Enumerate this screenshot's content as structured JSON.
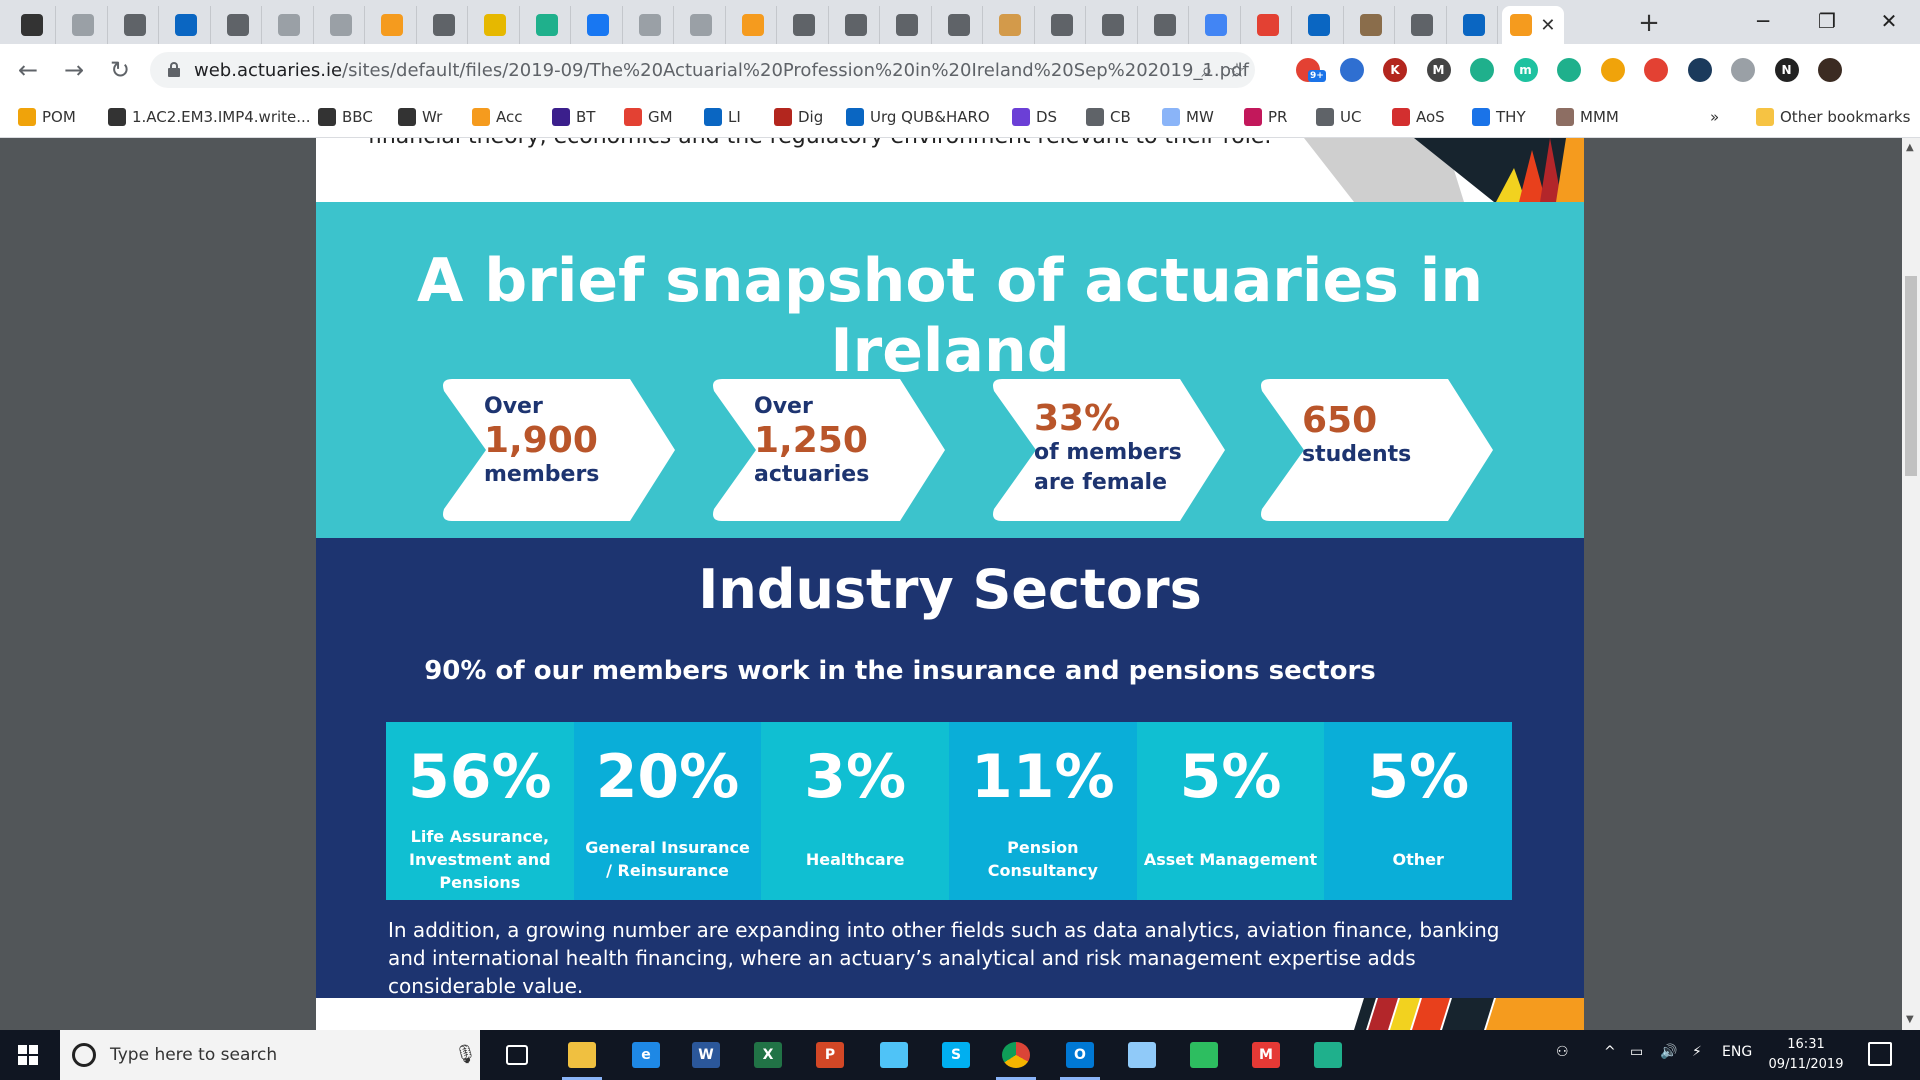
{
  "tabs": [
    {
      "icon": "page-icon",
      "color": "#333333"
    },
    {
      "icon": "doc-icon",
      "color": "#9aa0a6"
    },
    {
      "icon": "globe-icon",
      "color": "#5f6368"
    },
    {
      "icon": "linkedin-icon",
      "color": "#0a66c2"
    },
    {
      "icon": "doc-icon",
      "color": "#5f6368"
    },
    {
      "icon": "doc-icon",
      "color": "#9aa0a6"
    },
    {
      "icon": "doc-icon",
      "color": "#9aa0a6"
    },
    {
      "icon": "chart-icon",
      "color": "#f59b1e"
    },
    {
      "icon": "y-icon",
      "color": "#5f6368"
    },
    {
      "icon": "coin-icon",
      "color": "#e6b800"
    },
    {
      "icon": "s-icon",
      "color": "#1fb08c"
    },
    {
      "icon": "facebook-icon",
      "color": "#1877f2"
    },
    {
      "icon": "doc-icon",
      "color": "#9aa0a6"
    },
    {
      "icon": "doc-icon",
      "color": "#9aa0a6"
    },
    {
      "icon": "chart-icon",
      "color": "#f59b1e"
    },
    {
      "icon": "globe-icon",
      "color": "#5f6368"
    },
    {
      "icon": "globe-icon",
      "color": "#5f6368"
    },
    {
      "icon": "globe-icon",
      "color": "#5f6368"
    },
    {
      "icon": "globe-icon",
      "color": "#5f6368"
    },
    {
      "icon": "crest-icon",
      "color": "#d39a4a"
    },
    {
      "icon": "globe-icon",
      "color": "#5f6368"
    },
    {
      "icon": "globe-icon",
      "color": "#5f6368"
    },
    {
      "icon": "globe-icon",
      "color": "#5f6368"
    },
    {
      "icon": "google-icon",
      "color": "#4285f4"
    },
    {
      "icon": "pdf-icon",
      "color": "#e34133"
    },
    {
      "icon": "linkedin-icon",
      "color": "#0a66c2"
    },
    {
      "icon": "avatar-icon",
      "color": "#8a6d4b"
    },
    {
      "icon": "globe-icon",
      "color": "#5f6368"
    },
    {
      "icon": "linkedin-icon",
      "color": "#0a66c2"
    }
  ],
  "active_tab": {
    "icon": "actuaries-icon",
    "color": "#f59b1e"
  },
  "address_bar": {
    "url_host": "web.actuaries.ie",
    "url_path": "/sites/default/files/2019-09/The%20Actuarial%20Profession%20in%20Ireland%20Sep%202019_1.pdf"
  },
  "extensions": [
    {
      "icon": "notification-icon",
      "color": "#e34133",
      "badge": "9+"
    },
    {
      "icon": "extension-blue-icon",
      "color": "#2f6fd1"
    },
    {
      "icon": "k-icon",
      "color": "#b3261e",
      "label": "K"
    },
    {
      "icon": "m-icon",
      "color": "#444444",
      "label": "M"
    },
    {
      "icon": "check-icon",
      "color": "#1fb08c"
    },
    {
      "icon": "m-circle-icon",
      "color": "#1ec2a0",
      "label": "m"
    },
    {
      "icon": "s-icon",
      "color": "#1fb08c"
    },
    {
      "icon": "mail-icon",
      "color": "#f0a30a"
    },
    {
      "icon": "dots-icon",
      "color": "#e34133"
    },
    {
      "icon": "chat-icon",
      "color": "#1b3a5c"
    },
    {
      "icon": "p-icon",
      "color": "#9aa0a6"
    },
    {
      "icon": "notion-icon",
      "color": "#222222",
      "label": "N"
    },
    {
      "icon": "profile-avatar-icon",
      "color": "#3b2b22"
    }
  ],
  "bookmarks": [
    {
      "label": "POM",
      "icon": "circle-icon",
      "color": "#f0a30a"
    },
    {
      "label": "1.AC2.EM3.IMP4.write...",
      "icon": "page-icon",
      "color": "#333333"
    },
    {
      "label": "BBC",
      "icon": "bbc-icon",
      "color": "#333333"
    },
    {
      "label": "Wr",
      "icon": "bbc-icon",
      "color": "#333333"
    },
    {
      "label": "Acc",
      "icon": "chart-icon",
      "color": "#f59b1e"
    },
    {
      "label": "BT",
      "icon": "bt-icon",
      "color": "#3b1f8c"
    },
    {
      "label": "GM",
      "icon": "gmail-icon",
      "color": "#e34133"
    },
    {
      "label": "LI",
      "icon": "linkedin-icon",
      "color": "#0a66c2"
    },
    {
      "label": "Dig",
      "icon": "bar-icon",
      "color": "#b3261e"
    },
    {
      "label": "Urg QUB&HARO",
      "icon": "outlook-icon",
      "color": "#0a66c2"
    },
    {
      "label": "DS",
      "icon": "ds-icon",
      "color": "#6b3fd6"
    },
    {
      "label": "CB",
      "icon": "globe-icon",
      "color": "#5f6368"
    },
    {
      "label": "MW",
      "icon": "mw-icon",
      "color": "#8ab4f8"
    },
    {
      "label": "PR",
      "icon": "pr-icon",
      "color": "#c2185b"
    },
    {
      "label": "UC",
      "icon": "uc-icon",
      "color": "#5f6368"
    },
    {
      "label": "AoS",
      "icon": "grid-icon",
      "color": "#d32f2f"
    },
    {
      "label": "THY",
      "icon": "thy-icon",
      "color": "#1a73e8"
    },
    {
      "label": "MMM",
      "icon": "image-icon",
      "color": "#8d6e63"
    }
  ],
  "bookmarks_overflow": "»",
  "other_bookmarks": "Other bookmarks",
  "pdf": {
    "top_text": "financial theory, economics and the regulatory environment relevant to their role.",
    "snapshot_title": "A brief snapshot of actuaries in Ireland",
    "stats": [
      {
        "line1": "Over",
        "big": "1,900",
        "line2": "members",
        "line3": ""
      },
      {
        "line1": "Over",
        "big": "1,250",
        "line2": "actuaries",
        "line3": ""
      },
      {
        "line1": "",
        "big": "33%",
        "line2": "of members",
        "line3": "are female"
      },
      {
        "line1": "",
        "big": "650",
        "line2": "students",
        "line3": ""
      }
    ],
    "sectors_title": "Industry Sectors",
    "sectors_subtitle": "90% of our members work in the insurance and pensions sectors",
    "sectors": [
      {
        "pct": "56%",
        "label": "Life Assurance, Investment and Pensions",
        "color": "#10bfd2"
      },
      {
        "pct": "20%",
        "label": "General Insurance / Reinsurance",
        "color": "#0aaed8"
      },
      {
        "pct": "3%",
        "label": "Healthcare",
        "color": "#10bfd2"
      },
      {
        "pct": "11%",
        "label": "Pension Consultancy",
        "color": "#0aaed8"
      },
      {
        "pct": "5%",
        "label": "Asset Management",
        "color": "#10bfd2"
      },
      {
        "pct": "5%",
        "label": "Other",
        "color": "#0aaed8"
      }
    ],
    "sectors_note": "In addition, a growing number are expanding into other fields such as data analytics, aviation finance, banking and international health financing, where an actuary’s analytical and risk management expertise adds considerable value.",
    "colors": {
      "teal": "#3cc3cc",
      "navy": "#1d3470",
      "orange": "#b9552a"
    }
  },
  "taskbar": {
    "search_placeholder": "Type here to search",
    "apps": [
      {
        "icon": "task-view-icon",
        "color": "#101622"
      },
      {
        "icon": "file-explorer-icon",
        "color": "#f0c040"
      },
      {
        "icon": "edge-icon",
        "color": "#1e88e5",
        "label": "e"
      },
      {
        "icon": "word-icon",
        "color": "#2b579a",
        "label": "W"
      },
      {
        "icon": "excel-icon",
        "color": "#217346",
        "label": "X"
      },
      {
        "icon": "powerpoint-icon",
        "color": "#d24726",
        "label": "P"
      },
      {
        "icon": "pulse-icon",
        "color": "#4fc3f7"
      },
      {
        "icon": "skype-icon",
        "color": "#00aff0",
        "label": "S"
      },
      {
        "icon": "chrome-icon",
        "color": "#4caf50"
      },
      {
        "icon": "outlook-icon",
        "color": "#0078d4",
        "label": "O"
      },
      {
        "icon": "weather-icon",
        "color": "#90caf9"
      },
      {
        "icon": "evernote-icon",
        "color": "#2dbe60"
      },
      {
        "icon": "m-icon",
        "color": "#e53935",
        "label": "M"
      },
      {
        "icon": "check-icon",
        "color": "#1fb08c"
      }
    ],
    "language": "ENG",
    "time": "16:31",
    "date": "09/11/2019"
  }
}
